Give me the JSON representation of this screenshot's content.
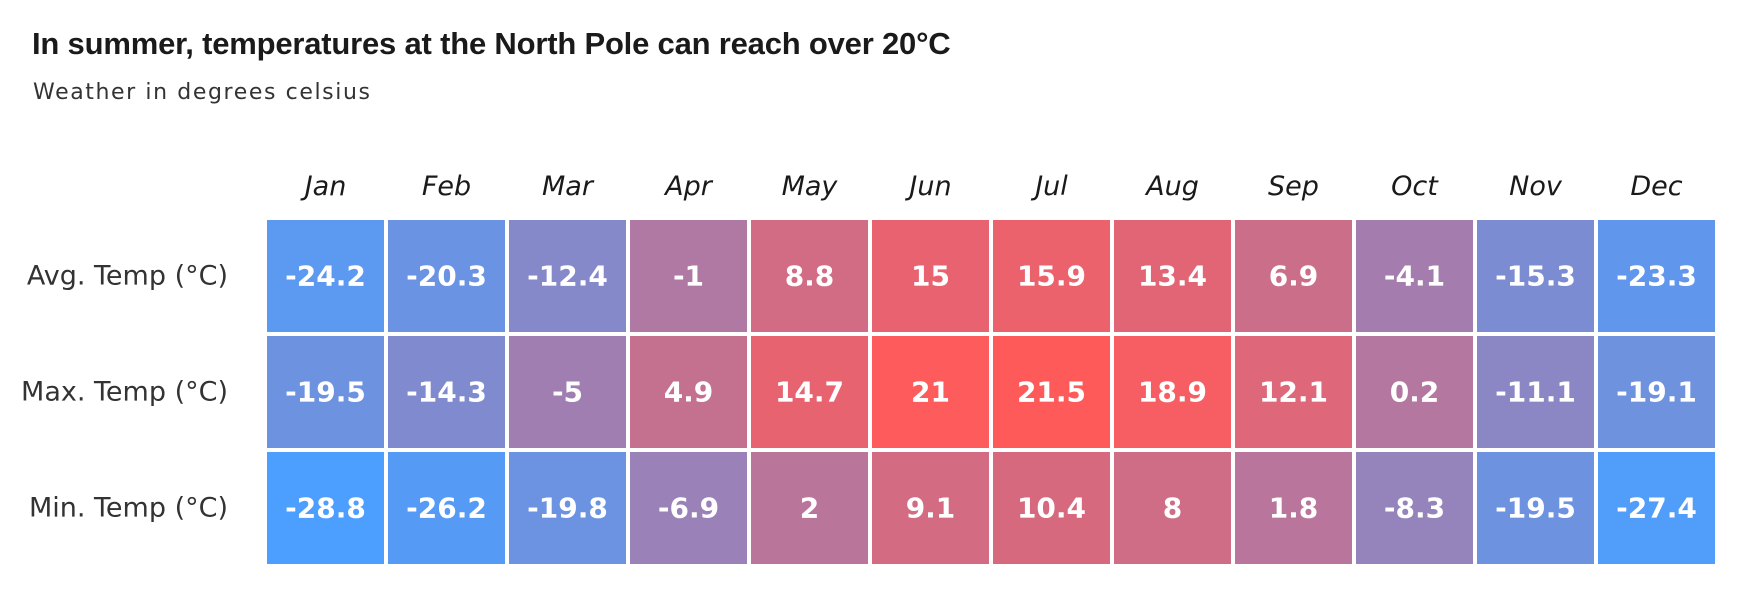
{
  "chart_data": {
    "type": "heatmap",
    "title": "In summer, temperatures at the North Pole can reach over 20°C",
    "subtitle": "Weather in degrees celsius",
    "columns": [
      "Jan",
      "Feb",
      "Mar",
      "Apr",
      "May",
      "Jun",
      "Jul",
      "Aug",
      "Sep",
      "Oct",
      "Nov",
      "Dec"
    ],
    "rows": [
      "Avg. Temp (°C)",
      "Max. Temp (°C)",
      "Min. Temp (°C)"
    ],
    "values": [
      [
        -24.2,
        -20.3,
        -12.4,
        -1,
        8.8,
        15,
        15.9,
        13.4,
        6.9,
        -4.1,
        -15.3,
        -23.3
      ],
      [
        -19.5,
        -14.3,
        -5,
        4.9,
        14.7,
        21,
        21.5,
        18.9,
        12.1,
        0.2,
        -11.1,
        -19.1
      ],
      [
        -28.8,
        -26.2,
        -19.8,
        -6.9,
        2,
        9.1,
        10.4,
        8,
        1.8,
        -8.3,
        -19.5,
        -27.4
      ]
    ],
    "color_scale": {
      "min_color": "#4c9fff",
      "max_color": "#ff5a5a",
      "min_value": -28.8,
      "max_value": 21.5
    }
  }
}
